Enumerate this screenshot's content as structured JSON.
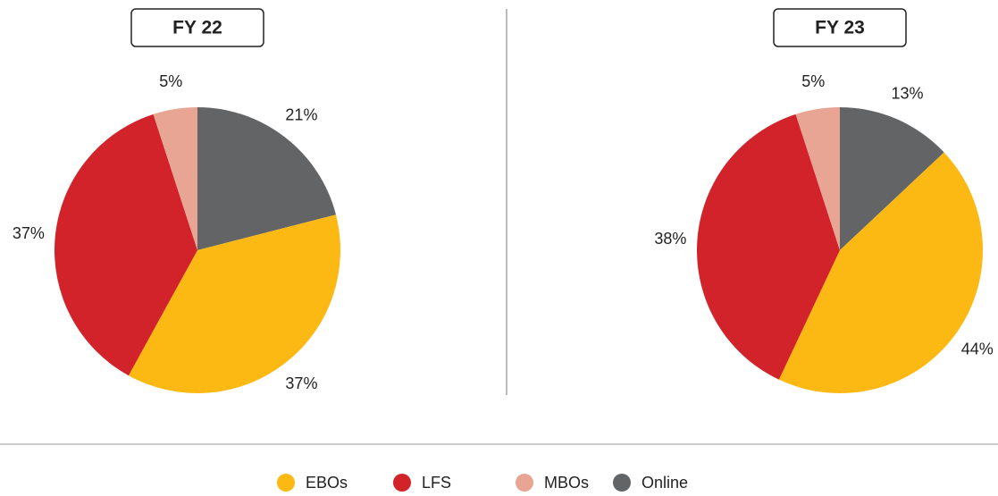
{
  "chart_data": [
    {
      "type": "pie",
      "title": "FY 22",
      "categories": [
        "Online",
        "EBOs",
        "LFS",
        "MBOs"
      ],
      "values": [
        21,
        37,
        37,
        5
      ],
      "value_labels": [
        "21%",
        "37%",
        "37%",
        "5%"
      ],
      "colors": [
        "#636466",
        "#fdb913",
        "#d2232a",
        "#e8a593"
      ]
    },
    {
      "type": "pie",
      "title": "FY 23",
      "categories": [
        "Online",
        "EBOs",
        "LFS",
        "MBOs"
      ],
      "values": [
        13,
        44,
        38,
        5
      ],
      "value_labels": [
        "13%",
        "44%",
        "38%",
        "5%"
      ],
      "colors": [
        "#636466",
        "#fdb913",
        "#d2232a",
        "#e8a593"
      ]
    }
  ]
}
